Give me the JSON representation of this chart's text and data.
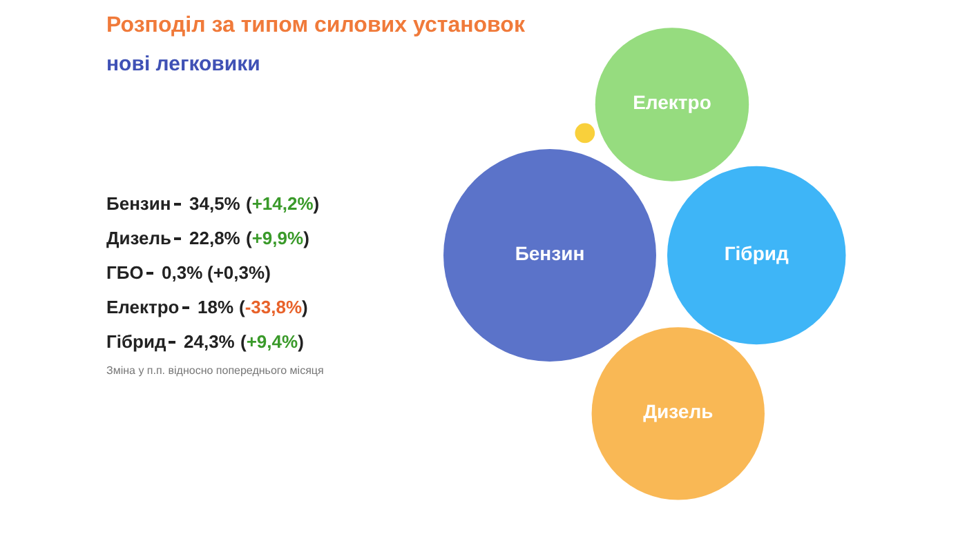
{
  "chart_data": {
    "type": "other",
    "title": "Розподіл за типом силових установок",
    "subtitle": "нові легковики",
    "categories": [
      "Бензин",
      "Дизель",
      "ГБО",
      "Електро",
      "Гібрид"
    ],
    "series": [
      {
        "values": [
          34.5,
          22.8,
          0.3,
          18,
          24.3
        ],
        "value_labels": [
          "34,5%",
          "22,8%",
          "0,3%",
          "18%",
          "24,3%"
        ],
        "colors": [
          "#5b73c9",
          "#f9b855",
          "#f9d03b",
          "#96dc7f",
          "#3eb5f7"
        ]
      },
      {
        "values": [
          14.2,
          9.9,
          0.3,
          -33.8,
          9.4
        ],
        "value_labels": [
          "(+14,2%)",
          "(+9,9%)",
          "(+0,3%)",
          "(-33,8%)",
          "(+9,4%)"
        ],
        "colors": [
          "#3a9a2a",
          "#3a9a2a",
          "#222222",
          "#e8622a",
          "#3a9a2a"
        ]
      }
    ],
    "annotations": [
      "Зміна у п.п. відносно попереднього місяця"
    ]
  }
}
